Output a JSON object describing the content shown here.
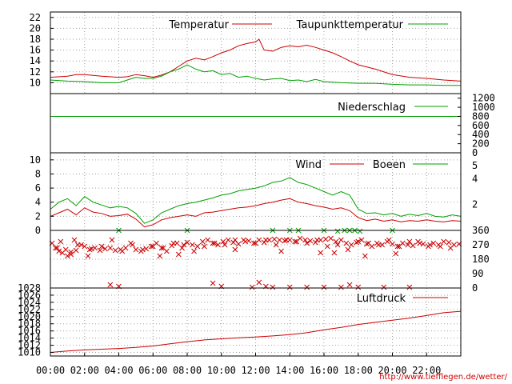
{
  "credit": "http://www.tiefflegen.de/wetter/",
  "colors": {
    "primary": "#cc0000",
    "secondary": "#00a000",
    "grid": "#a0a0a0",
    "axis": "#000000"
  },
  "chart_data": [
    {
      "type": "line",
      "name": "temperature",
      "x_unit": "hour",
      "xlim": [
        0,
        24
      ],
      "ylim": [
        8,
        23
      ],
      "yticks": [
        10,
        12,
        14,
        16,
        18,
        20,
        22
      ],
      "grid": true,
      "legend": "top-right",
      "series": [
        {
          "name": "Temperatur",
          "color": "#cc0000",
          "x": [
            0,
            1,
            1.5,
            2,
            3,
            4,
            4.5,
            5,
            5.5,
            6,
            6.5,
            7,
            7.5,
            8,
            8.5,
            9,
            9.5,
            10,
            10.5,
            11,
            11.5,
            12,
            12.2,
            12.5,
            13,
            13.5,
            14,
            14.5,
            15,
            15.5,
            16,
            16.5,
            17,
            17.5,
            18,
            19,
            20,
            21,
            22,
            23,
            24
          ],
          "y": [
            11.0,
            11.2,
            11.5,
            11.5,
            11.2,
            11.0,
            11.1,
            11.5,
            11.3,
            11.0,
            11.4,
            12.0,
            13.0,
            14.0,
            14.5,
            14.2,
            14.8,
            15.5,
            16.0,
            16.8,
            17.2,
            17.5,
            18.0,
            16.0,
            15.8,
            16.5,
            16.8,
            16.6,
            16.9,
            16.5,
            16.0,
            15.5,
            14.8,
            14.0,
            13.3,
            12.5,
            11.5,
            11.0,
            10.8,
            10.5,
            10.3
          ]
        },
        {
          "name": "Taupunkttemperatur",
          "color": "#00a000",
          "x": [
            0,
            1,
            2,
            3,
            4,
            4.5,
            5,
            5.5,
            6,
            6.5,
            7,
            7.5,
            8,
            8.5,
            9,
            9.5,
            10,
            10.5,
            11,
            11.5,
            12,
            12.5,
            13,
            13.5,
            14,
            14.5,
            15,
            15.5,
            16,
            17,
            18,
            19,
            20,
            21,
            22,
            23,
            24
          ],
          "y": [
            10.5,
            10.3,
            10.2,
            10.0,
            10.0,
            10.5,
            11.0,
            10.8,
            10.8,
            11.2,
            12.0,
            12.5,
            13.3,
            12.5,
            12.0,
            12.2,
            11.5,
            11.7,
            11.0,
            11.2,
            10.8,
            10.5,
            10.7,
            10.8,
            10.4,
            10.5,
            10.2,
            10.6,
            10.2,
            10.0,
            9.9,
            9.9,
            9.7,
            9.6,
            9.6,
            9.5,
            9.5
          ]
        }
      ]
    },
    {
      "type": "line",
      "name": "precipitation",
      "x_unit": "hour",
      "xlim": [
        0,
        24
      ],
      "ylim": [
        0,
        1300
      ],
      "yticks": [
        0,
        200,
        400,
        600,
        800,
        1000,
        1200
      ],
      "grid": false,
      "legend": "top-right",
      "series": [
        {
          "name": "Niederschlag",
          "color": "#00a000",
          "x": [
            0,
            24
          ],
          "y": [
            800,
            800
          ]
        }
      ]
    },
    {
      "type": "line",
      "name": "wind",
      "x_unit": "hour",
      "xlim": [
        0,
        24
      ],
      "ylim": [
        0,
        11
      ],
      "yticks": [
        0,
        2,
        4,
        6,
        8,
        10
      ],
      "y2ticks": [
        2,
        4,
        5
      ],
      "grid": true,
      "legend": "top-right",
      "series": [
        {
          "name": "Wind",
          "color": "#cc0000",
          "x": [
            0,
            0.5,
            1,
            1.5,
            2,
            2.5,
            3,
            3.5,
            4,
            4.5,
            5,
            5.5,
            6,
            6.5,
            7,
            7.5,
            8,
            8.5,
            9,
            9.5,
            10,
            10.5,
            11,
            11.5,
            12,
            12.5,
            13,
            13.5,
            14,
            14.5,
            15,
            15.5,
            16,
            16.5,
            17,
            17.5,
            18,
            18.5,
            19,
            19.5,
            20,
            20.5,
            21,
            21.5,
            22,
            22.5,
            23,
            23.5,
            24
          ],
          "y": [
            2.0,
            2.5,
            3.0,
            2.2,
            3.2,
            2.6,
            2.4,
            2.0,
            2.1,
            2.3,
            1.6,
            0.5,
            0.8,
            1.5,
            1.8,
            2.0,
            2.2,
            2.0,
            2.5,
            2.6,
            2.8,
            3.0,
            3.2,
            3.3,
            3.5,
            3.8,
            4.0,
            4.3,
            4.5,
            4.0,
            3.8,
            3.5,
            3.3,
            3.0,
            3.2,
            2.8,
            1.8,
            1.4,
            1.6,
            1.3,
            1.5,
            1.2,
            1.4,
            1.3,
            1.5,
            1.3,
            1.2,
            1.4,
            1.3
          ]
        },
        {
          "name": "Boeen",
          "color": "#00a000",
          "x": [
            0,
            0.5,
            1,
            1.5,
            2,
            2.5,
            3,
            3.5,
            4,
            4.5,
            5,
            5.5,
            6,
            6.5,
            7,
            7.5,
            8,
            8.5,
            9,
            9.5,
            10,
            10.5,
            11,
            11.5,
            12,
            12.5,
            13,
            13.5,
            14,
            14.5,
            15,
            15.5,
            16,
            16.5,
            17,
            17.5,
            18,
            18.5,
            19,
            19.5,
            20,
            20.5,
            21,
            21.5,
            22,
            22.5,
            23,
            23.5,
            24
          ],
          "y": [
            3.0,
            4.0,
            4.5,
            3.5,
            4.8,
            4.0,
            3.6,
            3.2,
            3.4,
            3.2,
            2.4,
            1.0,
            1.5,
            2.5,
            3.0,
            3.5,
            3.8,
            4.0,
            4.3,
            4.6,
            5.0,
            5.2,
            5.6,
            5.8,
            6.0,
            6.3,
            6.8,
            7.0,
            7.5,
            6.8,
            6.5,
            6.0,
            5.5,
            5.0,
            5.5,
            5.0,
            3.0,
            2.4,
            2.5,
            2.2,
            2.4,
            2.0,
            2.3,
            2.1,
            2.4,
            2.0,
            1.9,
            2.2,
            2.0
          ]
        }
      ]
    },
    {
      "type": "scatter",
      "name": "wind-direction",
      "x_unit": "hour",
      "xlim": [
        0,
        24
      ],
      "ylim": [
        0,
        360
      ],
      "y2ticks": [
        0,
        90,
        180,
        270,
        360
      ],
      "grid": true,
      "series": [
        {
          "name": "",
          "color": "#cc0000",
          "x": [
            0.1,
            0.3,
            0.5,
            0.7,
            0.9,
            1.2,
            1.5,
            1.8,
            2.0,
            2.3,
            2.6,
            2.9,
            3.2,
            3.5,
            3.8,
            4.1,
            4.4,
            4.7,
            5.0,
            5.3,
            5.6,
            5.9,
            6.2,
            6.5,
            6.8,
            7.1,
            7.4,
            7.7,
            8.0,
            8.3,
            8.6,
            8.9,
            9.2,
            9.5,
            9.8,
            10.1,
            10.4,
            10.7,
            11.0,
            11.3,
            11.6,
            11.9,
            12.2,
            12.5,
            12.8,
            13.1,
            13.4,
            13.7,
            14.0,
            14.3,
            14.6,
            14.9,
            15.2,
            15.5,
            15.8,
            16.1,
            16.4,
            16.7,
            17.0,
            17.3,
            17.6,
            17.9,
            18.2,
            18.5,
            18.8,
            19.1,
            19.4,
            19.7,
            20.0,
            20.3,
            20.6,
            20.9,
            21.2,
            21.5,
            21.8,
            22.1,
            22.4,
            22.7,
            23.0,
            23.3,
            23.6,
            23.9,
            0.4,
            1.0,
            1.6,
            2.4,
            3.0,
            3.6,
            4.2,
            4.8,
            5.4,
            6.0,
            6.6,
            7.2,
            7.8,
            8.4,
            9.0,
            9.6,
            10.2,
            10.8,
            11.4,
            12.0,
            12.6,
            13.2,
            13.8,
            14.4,
            15.0,
            15.6,
            16.2,
            16.8,
            17.4,
            18.0,
            18.6,
            19.2,
            19.8,
            20.4,
            21.0,
            21.6,
            22.2,
            22.8,
            23.4,
            3.5,
            4.0,
            9.5,
            10.0,
            11.8,
            12.2,
            12.6,
            13.0,
            14.0,
            15.0,
            16.0,
            17.0,
            17.5,
            18.0,
            19.5,
            21.0,
            0.6,
            1.2,
            1.4,
            2.2,
            6.4,
            7.5,
            10.8,
            13.5,
            15.8,
            16.6,
            18.4,
            20.2
          ],
          "y": [
            280,
            250,
            230,
            220,
            240,
            225,
            235,
            270,
            260,
            240,
            250,
            235,
            245,
            250,
            235,
            240,
            250,
            280,
            240,
            230,
            245,
            260,
            280,
            250,
            230,
            265,
            280,
            250,
            285,
            270,
            260,
            290,
            300,
            280,
            270,
            290,
            300,
            285,
            275,
            300,
            295,
            280,
            300,
            285,
            300,
            305,
            300,
            295,
            300,
            290,
            310,
            300,
            295,
            285,
            300,
            305,
            310,
            290,
            300,
            280,
            270,
            285,
            300,
            275,
            260,
            280,
            270,
            290,
            275,
            260,
            280,
            270,
            265,
            290,
            275,
            260,
            280,
            270,
            290,
            285,
            270,
            275,
            250,
            200,
            270,
            245,
            260,
            300,
            230,
            270,
            240,
            260,
            250,
            280,
            270,
            230,
            260,
            280,
            270,
            300,
            290,
            280,
            300,
            270,
            300,
            290,
            280,
            300,
            260,
            270,
            240,
            290,
            280,
            270,
            300,
            260,
            290,
            280,
            270,
            260,
            250,
            20,
            10,
            30,
            10,
            5,
            35,
            10,
            5,
            5,
            5,
            5,
            5,
            20,
            5,
            5,
            5,
            290,
            210,
            300,
            200,
            200,
            210,
            240,
            230,
            220,
            220,
            200,
            215
          ]
        },
        {
          "name": "",
          "color": "#00a000",
          "x": [
            13.0,
            14.0,
            14.5,
            16.0,
            16.8,
            17.2,
            17.5,
            17.8,
            18.1,
            20.0,
            8.0,
            4.0
          ],
          "y": [
            360,
            360,
            360,
            360,
            355,
            360,
            360,
            360,
            355,
            360,
            360,
            360
          ]
        }
      ]
    },
    {
      "type": "line",
      "name": "pressure",
      "x_unit": "hour",
      "xlim": [
        0,
        24
      ],
      "ylim": [
        1009,
        1028
      ],
      "yticks": [
        1010,
        1012,
        1014,
        1016,
        1018,
        1020,
        1022,
        1024,
        1026,
        1028
      ],
      "xticks": [
        "00:00",
        "02:00",
        "04:00",
        "06:00",
        "08:00",
        "10:00",
        "12:00",
        "14:00",
        "16:00",
        "18:00",
        "20:00",
        "22:00"
      ],
      "grid": true,
      "legend": "top-right",
      "series": [
        {
          "name": "Luftdruck",
          "color": "#cc0000",
          "x": [
            0,
            1,
            2,
            3,
            4,
            5,
            6,
            7,
            8,
            9,
            10,
            11,
            12,
            13,
            14,
            15,
            16,
            17,
            18,
            19,
            20,
            21,
            22,
            23,
            24
          ],
          "y": [
            1010.0,
            1010.4,
            1010.7,
            1010.9,
            1011.1,
            1011.4,
            1011.8,
            1012.4,
            1013.0,
            1013.5,
            1013.8,
            1014.1,
            1014.3,
            1014.6,
            1015.0,
            1015.5,
            1016.3,
            1017.0,
            1017.8,
            1018.4,
            1019.0,
            1019.6,
            1020.3,
            1021.1,
            1021.5
          ]
        }
      ]
    }
  ]
}
